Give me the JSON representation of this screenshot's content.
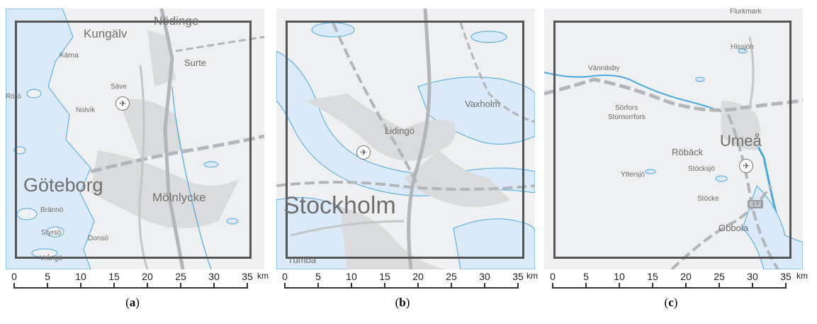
{
  "scale_ticks": [
    "0",
    "5",
    "10",
    "15",
    "20",
    "25",
    "30",
    "35"
  ],
  "scale_unit": "km",
  "colors": {
    "water": "#dbeaf8",
    "land": "#eef0f1",
    "urban": "#d9dbdc",
    "coast": "#4aa8e0",
    "road": "#b3b6b8",
    "frame": "#555555"
  },
  "panels": [
    {
      "id": "a",
      "caption_open": "(",
      "caption_letter": "a",
      "caption_close": ")",
      "places": [
        "Nödinge",
        "Kungälv",
        "Kärna",
        "Surte",
        "Säve",
        "Rörö",
        "Nolvik",
        "Göteborg",
        "Mölnlycke",
        "Brännö",
        "Styrsö",
        "Donsö",
        "Vrångö"
      ],
      "icons": [
        "airport-icon"
      ]
    },
    {
      "id": "b",
      "caption_open": "(",
      "caption_letter": "b",
      "caption_close": ")",
      "places": [
        "Vaxholm",
        "Lidingö",
        "Stockholm",
        "Tumba"
      ],
      "icons": [
        "airport-icon"
      ]
    },
    {
      "id": "c",
      "caption_open": "(",
      "caption_letter": "c",
      "caption_close": ")",
      "places": [
        "Flurkmark",
        "Hissjön",
        "Vännäsby",
        "Sörfors",
        "Stornorrfors",
        "Umeå",
        "Röbäck",
        "Stöcksjö",
        "Yttersjö",
        "Stöcke",
        "Obbola"
      ],
      "road_shield": "E12",
      "icons": [
        "airport-icon"
      ]
    }
  ]
}
